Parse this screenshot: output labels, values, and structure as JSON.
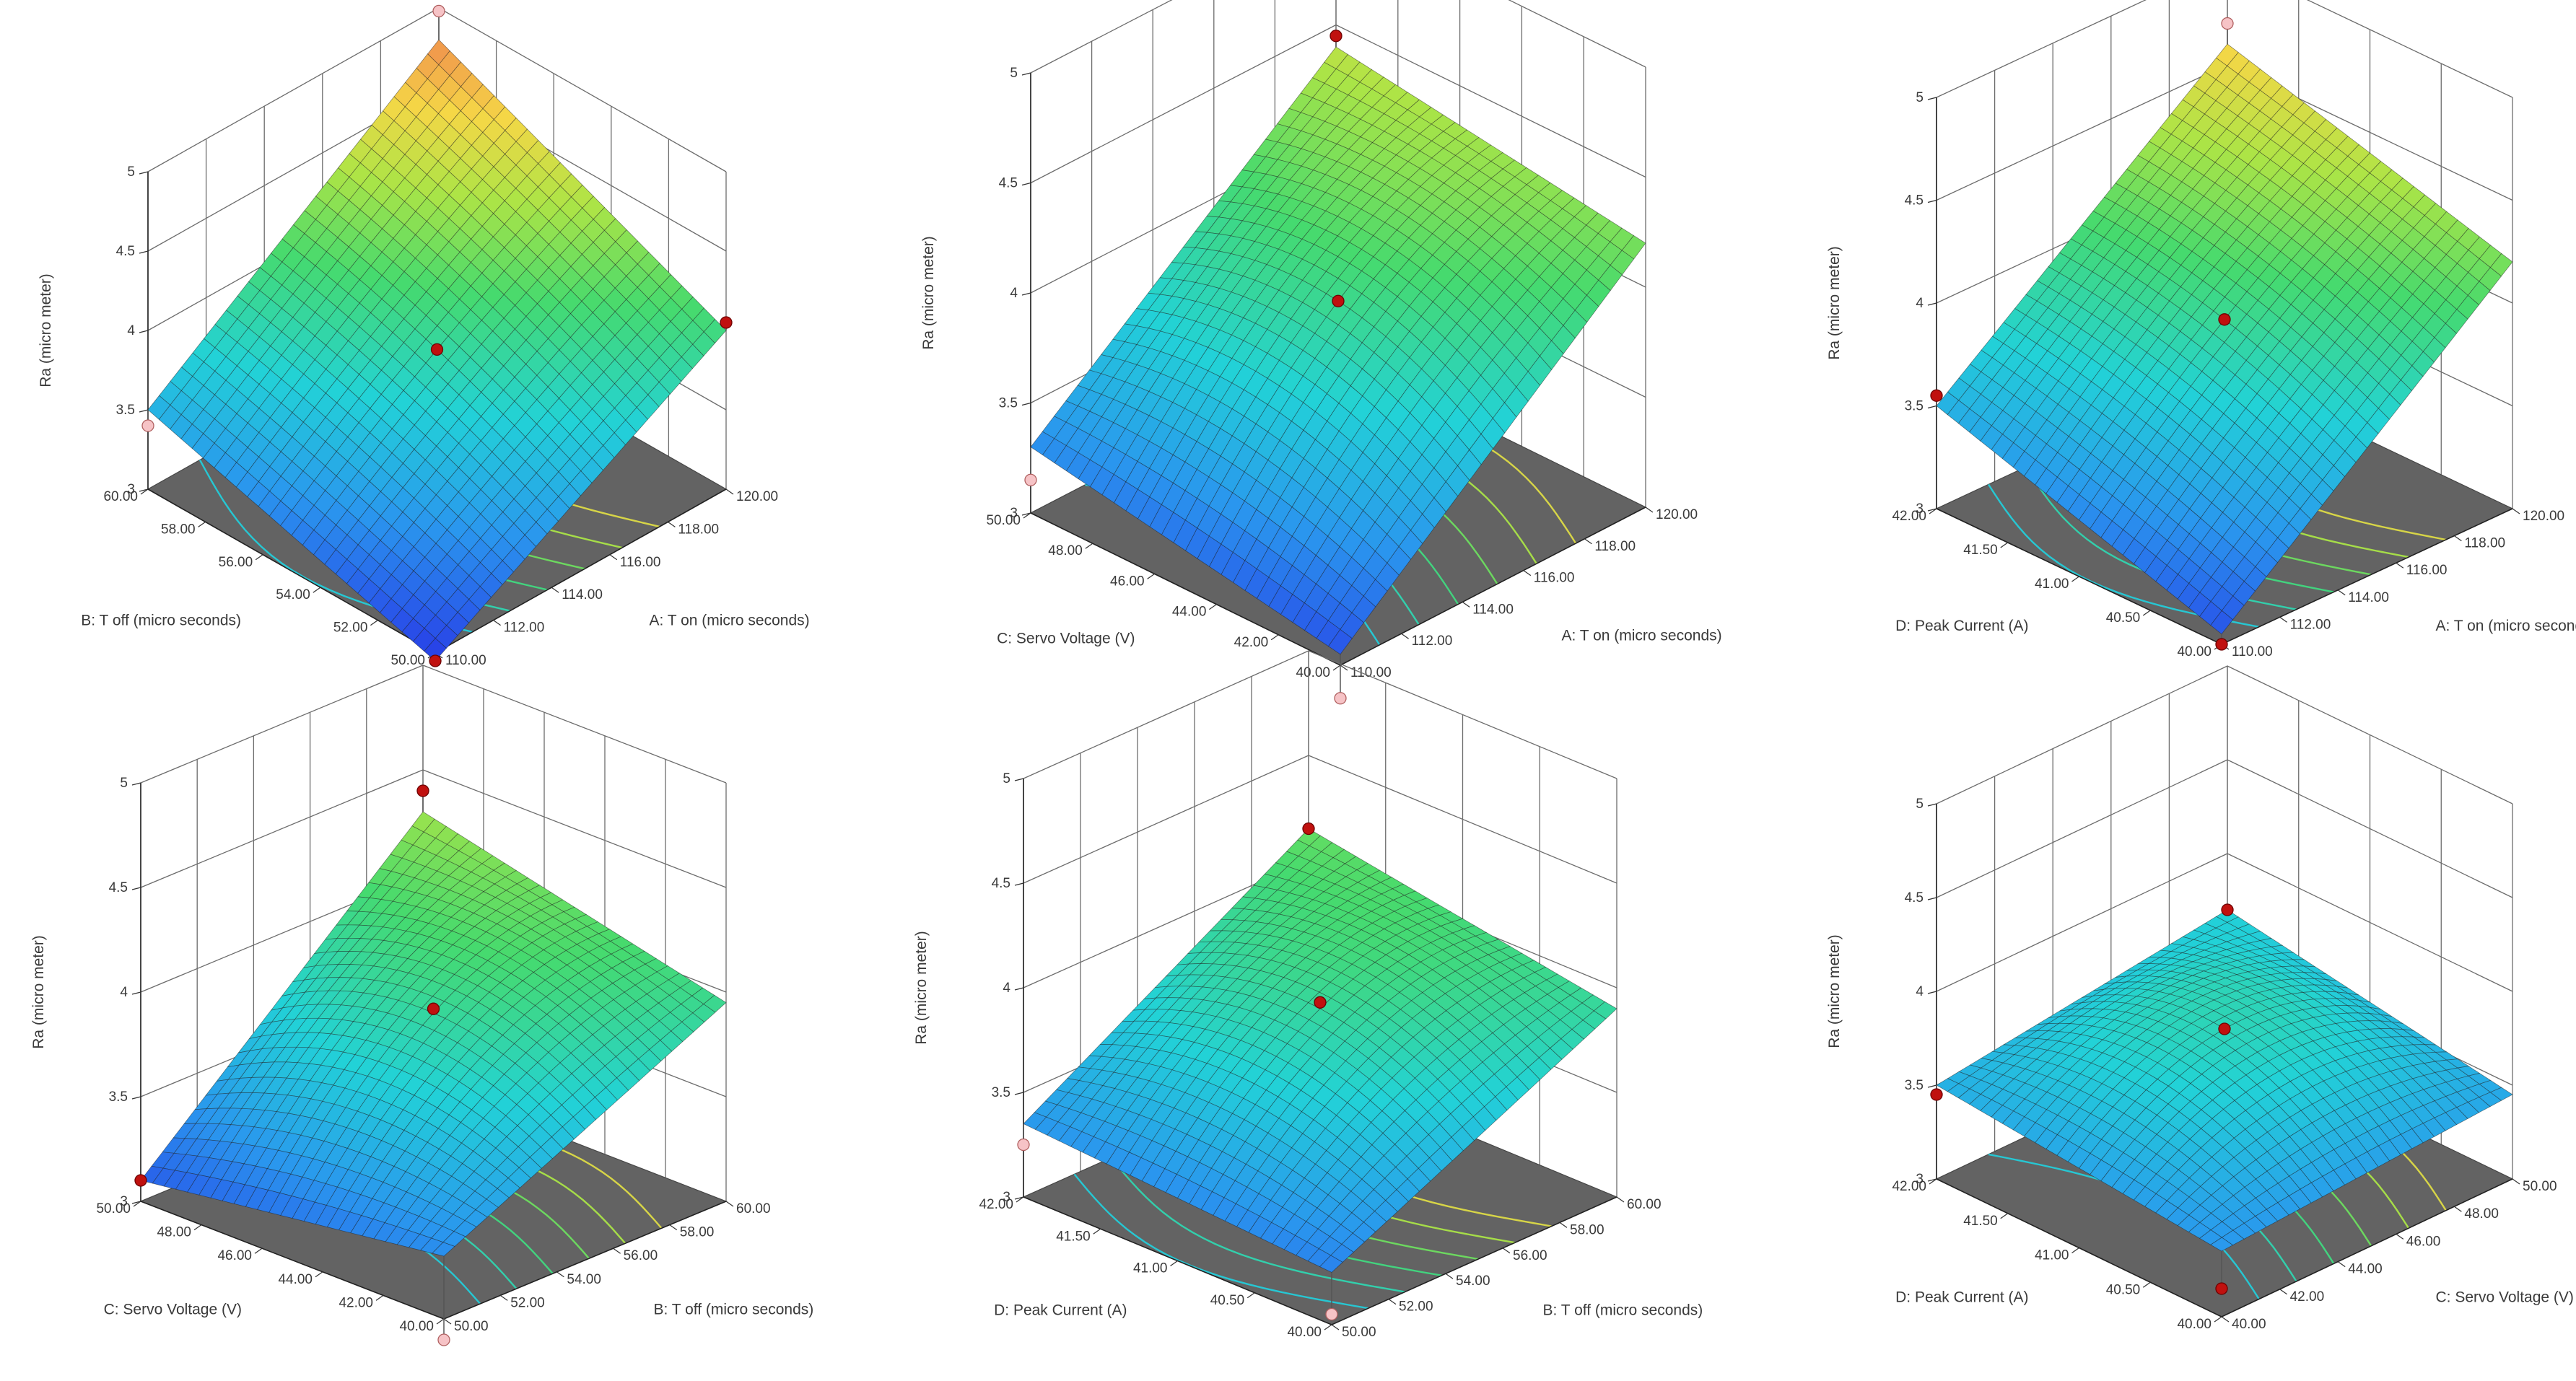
{
  "figure_title": "",
  "chart_data": [
    {
      "type": "surface3d",
      "response": "Ra (micro meter)",
      "zlim": [
        3,
        5
      ],
      "z_ticks": [
        "3",
        "3.5",
        "4",
        "4.5",
        "5"
      ],
      "x_label": "A: T on (micro seconds)",
      "x_range": [
        110,
        120
      ],
      "x_ticks": [
        "110.00",
        "112.00",
        "114.00",
        "116.00",
        "118.00",
        "120.00"
      ],
      "y_label": "B: T off (micro seconds)",
      "y_range": [
        50,
        60
      ],
      "y_ticks": [
        "50.00",
        "52.00",
        "54.00",
        "56.00",
        "58.00",
        "60.00"
      ],
      "corners": {
        "x0y0": 2.95,
        "x1y0": 4.0,
        "x0y1": 3.5,
        "x1y1": 4.8
      },
      "center": 3.88,
      "points": [
        {
          "x": 110,
          "y": 50,
          "z": 2.95,
          "kind": "above"
        },
        {
          "x": 115,
          "y": 55,
          "z": 3.88,
          "kind": "above"
        },
        {
          "x": 120,
          "y": 50,
          "z": 4.05,
          "kind": "above"
        },
        {
          "x": 110,
          "y": 60,
          "z": 3.4,
          "kind": "below"
        },
        {
          "x": 120,
          "y": 60,
          "z": 4.98,
          "kind": "below"
        }
      ]
    },
    {
      "type": "surface3d",
      "response": "Ra (micro meter)",
      "zlim": [
        3,
        5
      ],
      "z_ticks": [
        "3",
        "3.5",
        "4",
        "4.5",
        "5"
      ],
      "x_label": "A: T on (micro seconds)",
      "x_range": [
        110,
        120
      ],
      "x_ticks": [
        "110.00",
        "112.00",
        "114.00",
        "116.00",
        "118.00",
        "120.00"
      ],
      "y_label": "C: Servo Voltage (V)",
      "y_range": [
        40,
        50
      ],
      "y_ticks": [
        "40.00",
        "42.00",
        "44.00",
        "46.00",
        "48.00",
        "50.00"
      ],
      "corners": {
        "x0y0": 3.05,
        "x1y0": 4.2,
        "x0y1": 3.3,
        "x1y1": 4.4
      },
      "center": 3.95,
      "points": [
        {
          "x": 115,
          "y": 45,
          "z": 3.95,
          "kind": "above"
        },
        {
          "x": 120,
          "y": 50,
          "z": 4.45,
          "kind": "above"
        },
        {
          "x": 110,
          "y": 40,
          "z": 2.85,
          "kind": "below"
        },
        {
          "x": 110,
          "y": 50,
          "z": 3.15,
          "kind": "below"
        }
      ]
    },
    {
      "type": "surface3d",
      "response": "Ra (micro meter)",
      "zlim": [
        3,
        5
      ],
      "z_ticks": [
        "3",
        "3.5",
        "4",
        "4.5",
        "5"
      ],
      "x_label": "A: T on (micro seconds)",
      "x_range": [
        110,
        120
      ],
      "x_ticks": [
        "110.00",
        "112.00",
        "114.00",
        "116.00",
        "118.00",
        "120.00"
      ],
      "y_label": "D: Peak Current (A)",
      "y_range": [
        40,
        42
      ],
      "y_ticks": [
        "40.00",
        "40.50",
        "41.00",
        "41.50",
        "42.00"
      ],
      "corners": {
        "x0y0": 3.05,
        "x1y0": 4.2,
        "x0y1": 3.5,
        "x1y1": 4.6
      },
      "center": 3.92,
      "points": [
        {
          "x": 115,
          "y": 41,
          "z": 3.92,
          "kind": "above"
        },
        {
          "x": 110,
          "y": 40,
          "z": 3.0,
          "kind": "above"
        },
        {
          "x": 110,
          "y": 42,
          "z": 3.55,
          "kind": "above"
        },
        {
          "x": 120,
          "y": 42,
          "z": 4.7,
          "kind": "below"
        }
      ]
    },
    {
      "type": "surface3d",
      "response": "Ra (micro meter)",
      "zlim": [
        3,
        5
      ],
      "z_ticks": [
        "3",
        "3.5",
        "4",
        "4.5",
        "5"
      ],
      "x_label": "B: T off (micro seconds)",
      "x_range": [
        50,
        60
      ],
      "x_ticks": [
        "50.00",
        "52.00",
        "54.00",
        "56.00",
        "58.00",
        "60.00"
      ],
      "y_label": "C: Servo Voltage (V)",
      "y_range": [
        40,
        50
      ],
      "y_ticks": [
        "40.00",
        "42.00",
        "44.00",
        "46.00",
        "48.00",
        "50.00"
      ],
      "corners": {
        "x0y0": 3.3,
        "x1y0": 3.95,
        "x0y1": 3.1,
        "x1y1": 4.3
      },
      "center": 3.9,
      "points": [
        {
          "x": 55,
          "y": 45,
          "z": 3.92,
          "kind": "above"
        },
        {
          "x": 60,
          "y": 50,
          "z": 4.4,
          "kind": "above"
        },
        {
          "x": 50,
          "y": 50,
          "z": 3.1,
          "kind": "above"
        },
        {
          "x": 50,
          "y": 40,
          "z": 2.9,
          "kind": "below"
        }
      ]
    },
    {
      "type": "surface3d",
      "response": "Ra (micro meter)",
      "zlim": [
        3,
        5
      ],
      "z_ticks": [
        "3",
        "3.5",
        "4",
        "4.5",
        "5"
      ],
      "x_label": "B: T off (micro seconds)",
      "x_range": [
        50,
        60
      ],
      "x_ticks": [
        "50.00",
        "52.00",
        "54.00",
        "56.00",
        "58.00",
        "60.00"
      ],
      "y_label": "D: Peak Current (A)",
      "y_range": [
        40,
        42
      ],
      "y_ticks": [
        "40.00",
        "40.50",
        "41.00",
        "41.50",
        "42.00"
      ],
      "corners": {
        "x0y0": 3.25,
        "x1y0": 3.9,
        "x0y1": 3.35,
        "x1y1": 4.15
      },
      "center": 3.9,
      "points": [
        {
          "x": 55,
          "y": 41,
          "z": 3.93,
          "kind": "above"
        },
        {
          "x": 60,
          "y": 42,
          "z": 4.15,
          "kind": "above"
        },
        {
          "x": 50,
          "y": 42,
          "z": 3.25,
          "kind": "below"
        },
        {
          "x": 50,
          "y": 40,
          "z": 3.05,
          "kind": "below"
        }
      ]
    },
    {
      "type": "surface3d",
      "response": "Ra (micro meter)",
      "zlim": [
        3,
        5
      ],
      "z_ticks": [
        "3",
        "3.5",
        "4",
        "4.5",
        "5"
      ],
      "x_label": "C: Servo Voltage (V)",
      "x_range": [
        40,
        50
      ],
      "x_ticks": [
        "40.00",
        "42.00",
        "44.00",
        "46.00",
        "48.00",
        "50.00"
      ],
      "y_label": "D: Peak Current (A)",
      "y_range": [
        40,
        42
      ],
      "y_ticks": [
        "40.00",
        "40.50",
        "41.00",
        "41.50",
        "42.00"
      ],
      "corners": {
        "x0y0": 3.35,
        "x1y0": 3.45,
        "x0y1": 3.5,
        "x1y1": 3.7
      },
      "center": 3.8,
      "points": [
        {
          "x": 45,
          "y": 41,
          "z": 3.8,
          "kind": "above"
        },
        {
          "x": 40,
          "y": 40,
          "z": 3.15,
          "kind": "above"
        },
        {
          "x": 50,
          "y": 42,
          "z": 3.7,
          "kind": "above"
        },
        {
          "x": 40,
          "y": 42,
          "z": 3.45,
          "kind": "above"
        }
      ]
    }
  ]
}
